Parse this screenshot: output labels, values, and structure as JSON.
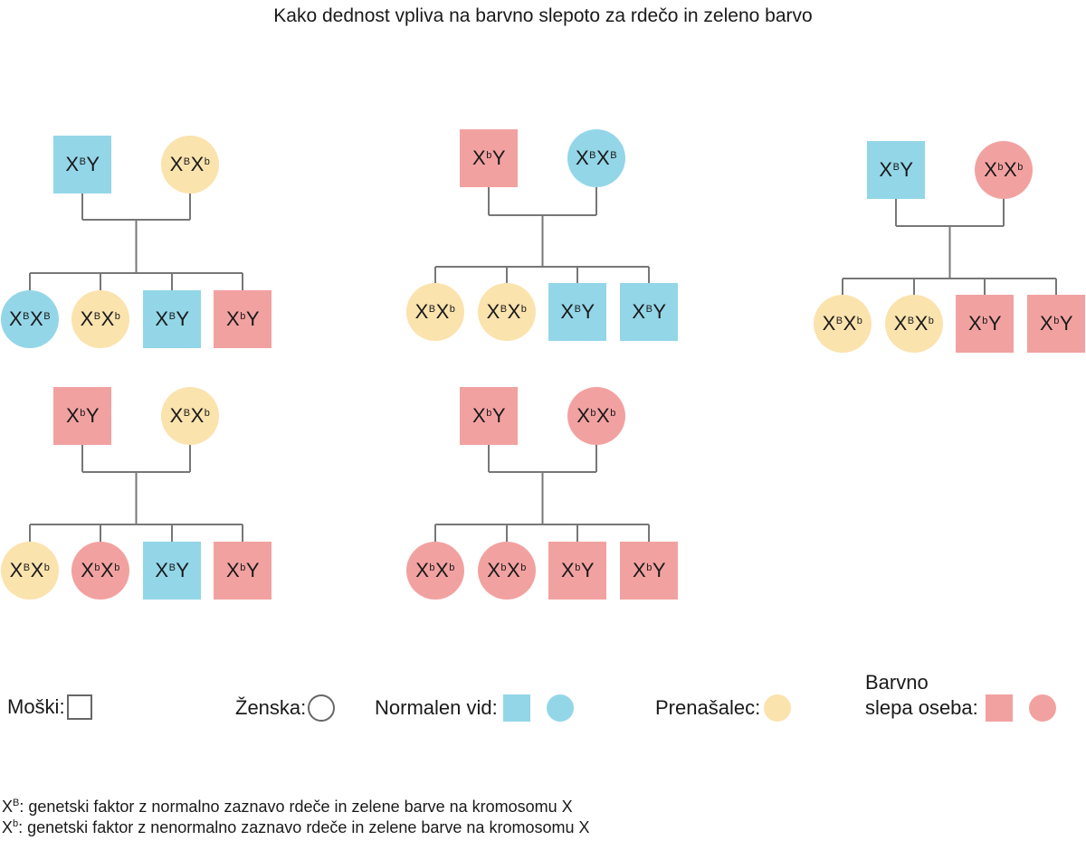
{
  "title": "Kako dednost vpliva na barvno slepoto za rdečo in zeleno barvo",
  "colors": {
    "normal": "#93d6e8",
    "carrier": "#fbe3ae",
    "colorblind": "#f2a1a1",
    "line": "#777777"
  },
  "families": [
    {
      "father": {
        "gene": "X",
        "a1": "B",
        "suffix": "Y",
        "status": "normal"
      },
      "mother": {
        "gene": "X",
        "a1": "B",
        "mid": "X",
        "a2": "b",
        "status": "carrier"
      },
      "children": [
        {
          "shape": "circle",
          "a1": "B",
          "a2": "B",
          "status": "normal"
        },
        {
          "shape": "circle",
          "a1": "B",
          "a2": "b",
          "status": "carrier"
        },
        {
          "shape": "square",
          "a1": "B",
          "status": "normal"
        },
        {
          "shape": "square",
          "a1": "b",
          "status": "colorblind"
        }
      ]
    },
    {
      "father": {
        "a1": "b",
        "status": "colorblind"
      },
      "mother": {
        "a1": "B",
        "a2": "B",
        "status": "normal"
      },
      "children": [
        {
          "shape": "circle",
          "a1": "B",
          "a2": "b",
          "status": "carrier"
        },
        {
          "shape": "circle",
          "a1": "B",
          "a2": "b",
          "status": "carrier"
        },
        {
          "shape": "square",
          "a1": "B",
          "status": "normal"
        },
        {
          "shape": "square",
          "a1": "B",
          "status": "normal"
        }
      ]
    },
    {
      "father": {
        "a1": "B",
        "status": "normal"
      },
      "mother": {
        "a1": "b",
        "a2": "b",
        "status": "colorblind"
      },
      "children": [
        {
          "shape": "circle",
          "a1": "B",
          "a2": "b",
          "status": "carrier"
        },
        {
          "shape": "circle",
          "a1": "B",
          "a2": "b",
          "status": "carrier"
        },
        {
          "shape": "square",
          "a1": "b",
          "status": "colorblind"
        },
        {
          "shape": "square",
          "a1": "b",
          "status": "colorblind"
        }
      ]
    },
    {
      "father": {
        "a1": "b",
        "status": "colorblind"
      },
      "mother": {
        "a1": "B",
        "a2": "b",
        "status": "carrier"
      },
      "children": [
        {
          "shape": "circle",
          "a1": "B",
          "a2": "b",
          "status": "carrier"
        },
        {
          "shape": "circle",
          "a1": "b",
          "a2": "b",
          "status": "colorblind"
        },
        {
          "shape": "square",
          "a1": "B",
          "status": "normal"
        },
        {
          "shape": "square",
          "a1": "b",
          "status": "colorblind"
        }
      ]
    },
    {
      "father": {
        "a1": "b",
        "status": "colorblind"
      },
      "mother": {
        "a1": "b",
        "a2": "b",
        "status": "colorblind"
      },
      "children": [
        {
          "shape": "circle",
          "a1": "b",
          "a2": "b",
          "status": "colorblind"
        },
        {
          "shape": "circle",
          "a1": "b",
          "a2": "b",
          "status": "colorblind"
        },
        {
          "shape": "square",
          "a1": "b",
          "status": "colorblind"
        },
        {
          "shape": "square",
          "a1": "b",
          "status": "colorblind"
        }
      ]
    }
  ],
  "gene_letter": "X",
  "y_letter": "Y",
  "legend": {
    "male": "Moški:",
    "female": "Ženska:",
    "normal": "Normalen vid:",
    "carrier": "Prenašalec:",
    "colorblind_line1": "Barvno",
    "colorblind_line2": "slepa oseba:"
  },
  "footnotes": {
    "line1_sup": "B",
    "line1_text": ": genetski faktor z normalno zaznavo rdeče in zelene barve na kromosomu X",
    "line2_sup": "b",
    "line2_text": ": genetski faktor z nenormalno zaznavo rdeče in zelene barve na kromosomu X"
  }
}
